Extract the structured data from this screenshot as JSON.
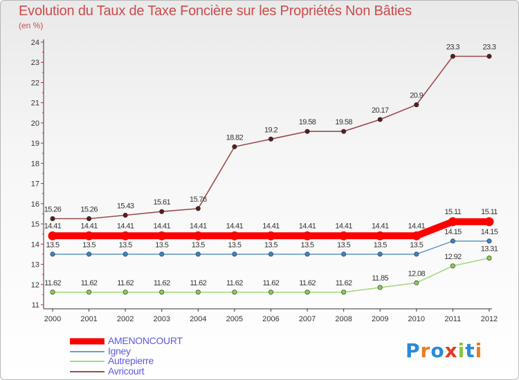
{
  "title": "Evolution du Taux de Taxe Foncière sur les Propriétés Non Bâties",
  "subtitle": "(en %)",
  "logo": {
    "text": "Proxiti",
    "letters": [
      "P",
      "r",
      "o",
      "x",
      "i",
      "t",
      "i"
    ],
    "colors": [
      "#2a8ad8",
      "#e87c1e",
      "#2a8ad8",
      "#e23a26",
      "#8ac43f",
      "#2a8ad8",
      "#e87c1e"
    ]
  },
  "chart_data": {
    "type": "line",
    "title": "Evolution du Taux de Taxe Foncière sur les Propriétés Non Bâties",
    "ylabel": "(en %)",
    "xlabel": "",
    "x": [
      "2000",
      "2001",
      "2002",
      "2003",
      "2004",
      "2005",
      "2006",
      "2007",
      "2008",
      "2009",
      "2010",
      "2011",
      "2012"
    ],
    "ylim": [
      11,
      24
    ],
    "yticks": [
      "11",
      "12",
      "13",
      "14",
      "15",
      "16",
      "17",
      "18",
      "19",
      "20",
      "21",
      "22",
      "23",
      "24"
    ],
    "grid": false,
    "legend_position": "bottom-left",
    "series": [
      {
        "name": "AMENONCOURT",
        "color": "#ff0000",
        "width": "thick",
        "values": [
          14.41,
          14.41,
          14.41,
          14.41,
          14.41,
          14.41,
          14.41,
          14.41,
          14.41,
          14.41,
          14.41,
          15.11,
          15.11
        ],
        "labels": [
          "14.41",
          "14.41",
          "14.41",
          "14.41",
          "14.41",
          "14.41",
          "14.41",
          "14.41",
          "14.41",
          "14.41",
          "14.41",
          "15.11",
          "15.11"
        ]
      },
      {
        "name": "Igney",
        "color": "#6b9dc8",
        "marker": "#3d82c6",
        "width": "thin",
        "values": [
          13.5,
          13.5,
          13.5,
          13.5,
          13.5,
          13.5,
          13.5,
          13.5,
          13.5,
          13.5,
          13.5,
          14.15,
          14.15
        ],
        "labels": [
          "13.5",
          "13.5",
          "13.5",
          "13.5",
          "13.5",
          "13.5",
          "13.5",
          "13.5",
          "13.5",
          "13.5",
          "13.5",
          "14.15",
          "14.15"
        ]
      },
      {
        "name": "Autrepierre",
        "color": "#a4da7e",
        "marker": "#8ccc4f",
        "width": "thin",
        "values": [
          11.62,
          11.62,
          11.62,
          11.62,
          11.62,
          11.62,
          11.62,
          11.62,
          11.62,
          11.85,
          12.08,
          12.92,
          13.31
        ],
        "labels": [
          "11.62",
          "11.62",
          "11.62",
          "11.62",
          "11.62",
          "11.62",
          "11.62",
          "11.62",
          "11.62",
          "11.85",
          "12.08",
          "12.92",
          "13.31"
        ]
      },
      {
        "name": "Avricourt",
        "color": "#9a4a4a",
        "marker": "#5a1e1e",
        "width": "thin",
        "values": [
          15.26,
          15.26,
          15.43,
          15.61,
          15.76,
          18.82,
          19.2,
          19.58,
          19.58,
          20.17,
          20.9,
          23.3,
          23.3
        ],
        "labels": [
          "15.26",
          "15.26",
          "15.43",
          "15.61",
          "15.76",
          "18.82",
          "19.2",
          "19.58",
          "19.58",
          "20.17",
          "20.9",
          "23.3",
          "23.3"
        ]
      }
    ]
  }
}
